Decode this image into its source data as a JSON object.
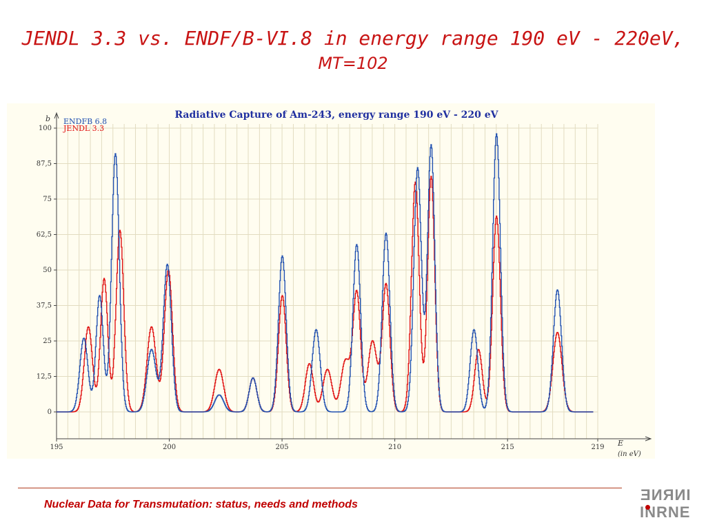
{
  "slide": {
    "title_line1": "JENDL 3.3 vs. ENDF/B-VI.8 in energy range 190 eV - 220eV,",
    "title_line2": "MT=102",
    "footer": "Nuclear Data for Transmutation: status, needs and methods",
    "logo_top": "INRNE",
    "logo_bottom": "INRNE",
    "colors": {
      "title": "#c81414",
      "footer": "#c00000",
      "line": "#b03c1e"
    }
  },
  "chart_data": {
    "type": "line",
    "title": "Radiative Capture of Am-243, energy range 190 eV - 220 eV",
    "ylabel": "b",
    "xlabel": "E",
    "xlabel_sub": "(in eV)",
    "xlim": [
      195,
      219
    ],
    "ylim": [
      0,
      100
    ],
    "x_ticks": [
      "195",
      "200",
      "205",
      "210",
      "215",
      "219"
    ],
    "x_tick_values": [
      195,
      200,
      205,
      210,
      215,
      219
    ],
    "y_ticks": [
      "0",
      "12,5",
      "25",
      "37,5",
      "50",
      "62,5",
      "75",
      "87,5",
      "100"
    ],
    "y_tick_values": [
      0,
      12.5,
      25,
      37.5,
      50,
      62.5,
      75,
      87.5,
      100
    ],
    "background": "#fffdf0",
    "grid": true,
    "legend_position": "top-left",
    "series": [
      {
        "name": "ENDFB 6.8",
        "color": "#2050b0",
        "peaks": [
          {
            "e": 196.2,
            "h": 26.0,
            "w": 0.18
          },
          {
            "e": 196.9,
            "h": 41.0,
            "w": 0.16
          },
          {
            "e": 197.6,
            "h": 91.0,
            "w": 0.17
          },
          {
            "e": 199.2,
            "h": 22.0,
            "w": 0.2
          },
          {
            "e": 199.9,
            "h": 52.0,
            "w": 0.18
          },
          {
            "e": 202.2,
            "h": 6.0,
            "w": 0.2
          },
          {
            "e": 203.7,
            "h": 12.0,
            "w": 0.17
          },
          {
            "e": 205.0,
            "h": 55.0,
            "w": 0.17
          },
          {
            "e": 206.5,
            "h": 29.0,
            "w": 0.18
          },
          {
            "e": 208.3,
            "h": 59.0,
            "w": 0.17
          },
          {
            "e": 209.6,
            "h": 63.0,
            "w": 0.17
          },
          {
            "e": 211.0,
            "h": 86.0,
            "w": 0.17
          },
          {
            "e": 211.6,
            "h": 94.0,
            "w": 0.16
          },
          {
            "e": 213.5,
            "h": 29.0,
            "w": 0.17
          },
          {
            "e": 214.5,
            "h": 98.0,
            "w": 0.17
          },
          {
            "e": 217.2,
            "h": 43.0,
            "w": 0.18
          }
        ]
      },
      {
        "name": "JENDL 3.3",
        "color": "#e01010",
        "peaks": [
          {
            "e": 196.4,
            "h": 30.0,
            "w": 0.18
          },
          {
            "e": 197.1,
            "h": 47.0,
            "w": 0.16
          },
          {
            "e": 197.8,
            "h": 64.0,
            "w": 0.17
          },
          {
            "e": 199.2,
            "h": 30.0,
            "w": 0.2
          },
          {
            "e": 199.95,
            "h": 50.0,
            "w": 0.18
          },
          {
            "e": 202.2,
            "h": 15.0,
            "w": 0.2
          },
          {
            "e": 203.7,
            "h": 12.0,
            "w": 0.17
          },
          {
            "e": 205.0,
            "h": 41.0,
            "w": 0.17
          },
          {
            "e": 206.2,
            "h": 17.0,
            "w": 0.18
          },
          {
            "e": 207.0,
            "h": 15.0,
            "w": 0.2
          },
          {
            "e": 207.8,
            "h": 18.0,
            "w": 0.2
          },
          {
            "e": 208.3,
            "h": 42.0,
            "w": 0.17
          },
          {
            "e": 209.0,
            "h": 25.0,
            "w": 0.2
          },
          {
            "e": 209.6,
            "h": 45.0,
            "w": 0.17
          },
          {
            "e": 210.9,
            "h": 81.0,
            "w": 0.17
          },
          {
            "e": 211.6,
            "h": 83.0,
            "w": 0.16
          },
          {
            "e": 213.7,
            "h": 22.0,
            "w": 0.17
          },
          {
            "e": 214.5,
            "h": 69.0,
            "w": 0.17
          },
          {
            "e": 217.2,
            "h": 28.0,
            "w": 0.2
          }
        ]
      }
    ]
  }
}
